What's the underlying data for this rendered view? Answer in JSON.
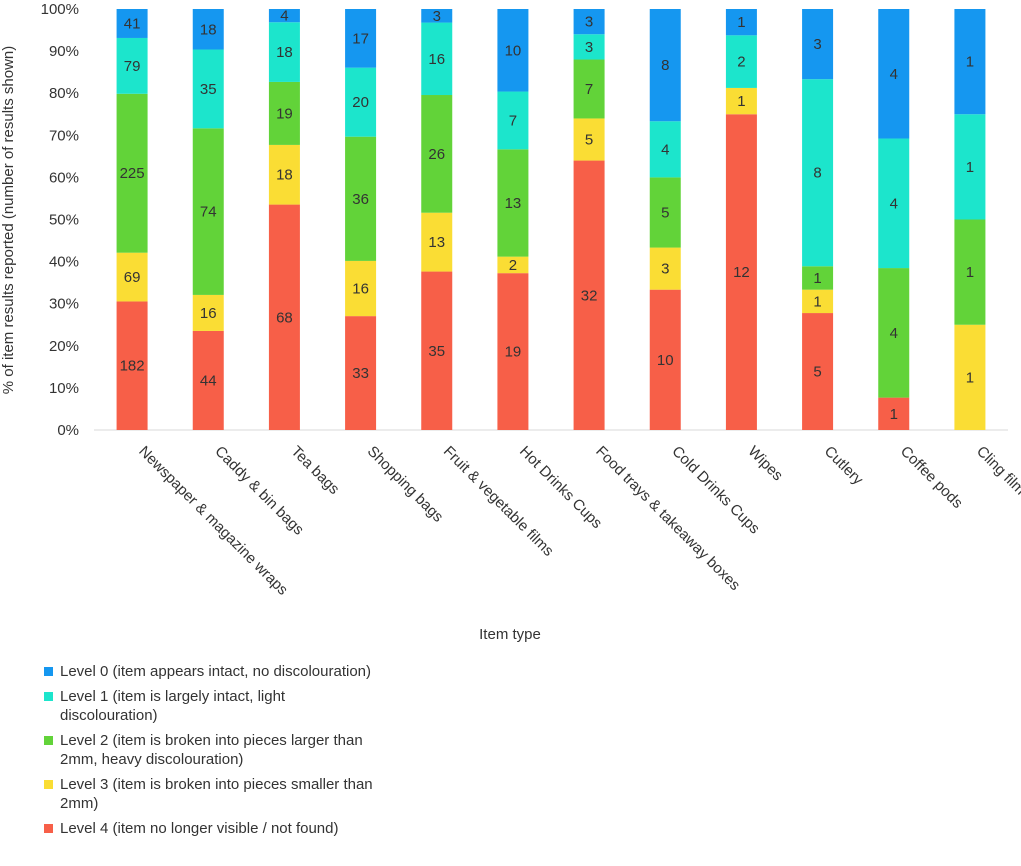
{
  "chart_data": {
    "type": "stacked-bar-100",
    "title": "",
    "xlabel": "Item type",
    "ylabel": "% of item results reported (number of results shown)",
    "ylim": [
      0,
      100
    ],
    "yticks": [
      "0%",
      "10%",
      "20%",
      "30%",
      "40%",
      "50%",
      "60%",
      "70%",
      "80%",
      "90%",
      "100%"
    ],
    "legend_position": "bottom-left",
    "categories": [
      "Newspaper & magazine wraps",
      "Caddy & bin bags",
      "Tea bags",
      "Shopping bags",
      "Fruit & vegetable films",
      "Hot Drinks Cups",
      "Food trays & takeaway boxes",
      "Cold Drinks Cups",
      "Wipes",
      "Cutlery",
      "Coffee pods",
      "Cling film"
    ],
    "series": [
      {
        "name": "Level 4 (item no longer visible / not found)",
        "color": "#f75f48",
        "values": [
          182,
          44,
          68,
          33,
          35,
          19,
          32,
          10,
          12,
          5,
          1,
          0
        ]
      },
      {
        "name": "Level 3 (item is broken into pieces smaller than 2mm)",
        "color": "#fadd34",
        "values": [
          69,
          16,
          18,
          16,
          13,
          2,
          5,
          3,
          1,
          1,
          0,
          1
        ]
      },
      {
        "name": "Level 2 (item is broken into pieces larger than 2mm, heavy discolouration)",
        "color": "#62d339",
        "values": [
          225,
          74,
          19,
          36,
          26,
          13,
          7,
          5,
          0,
          1,
          4,
          1
        ]
      },
      {
        "name": "Level 1 (item is largely intact, light discolouration)",
        "color": "#1ce5cc",
        "values": [
          79,
          35,
          18,
          20,
          16,
          7,
          3,
          4,
          2,
          8,
          4,
          1
        ]
      },
      {
        "name": "Level 0 (item appears intact, no discolouration)",
        "color": "#1597f0",
        "values": [
          41,
          18,
          4,
          17,
          3,
          10,
          3,
          8,
          1,
          3,
          4,
          1
        ]
      }
    ]
  }
}
